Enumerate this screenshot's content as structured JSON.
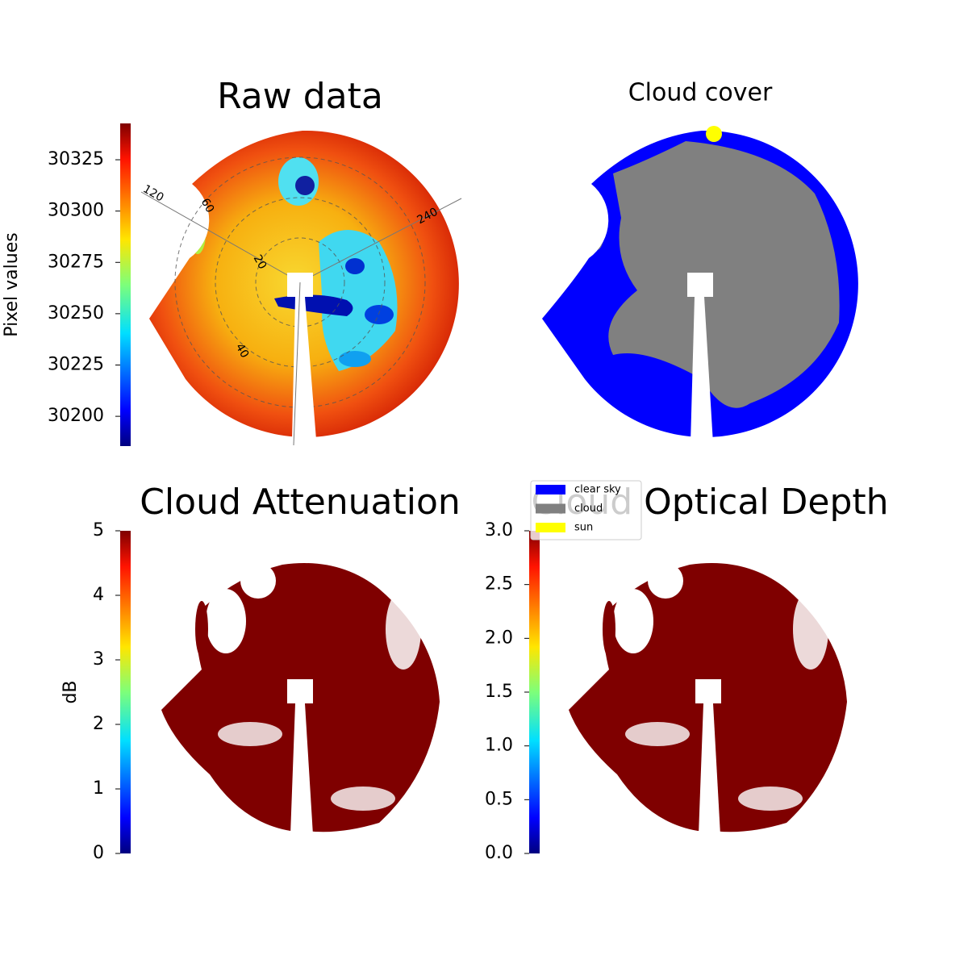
{
  "chart_data": [
    {
      "type": "image",
      "title": "Raw data",
      "ylabel": "Pixel values",
      "ylim": [
        30185.5,
        30342.7
      ],
      "yticks": [
        30200,
        30225,
        30250,
        30275,
        30300,
        30325
      ],
      "azimuth_labels": [
        120,
        240
      ],
      "zenith_labels": [
        20,
        40,
        60
      ]
    },
    {
      "type": "image",
      "title": "Cloud cover",
      "series": [
        {
          "name": "clear sky",
          "color": "#0000ff"
        },
        {
          "name": "cloud",
          "color": "#808080"
        },
        {
          "name": "sun",
          "color": "#ffff00"
        }
      ]
    },
    {
      "type": "image",
      "title": "Cloud Attenuation",
      "ylabel": "dB",
      "ylim": [
        0,
        5
      ],
      "yticks": [
        0,
        1,
        2,
        3,
        4,
        5
      ]
    },
    {
      "type": "image",
      "title": "Cloud Optical Depth",
      "ylim": [
        0,
        3
      ],
      "yticks": [
        {
          "value": 0,
          "label": "0.0"
        },
        0.5,
        {
          "value": 1,
          "label": "1.0"
        },
        1.5,
        {
          "value": 2,
          "label": "2.0"
        },
        2.5,
        {
          "value": 3,
          "label": "3.0"
        }
      ]
    }
  ]
}
